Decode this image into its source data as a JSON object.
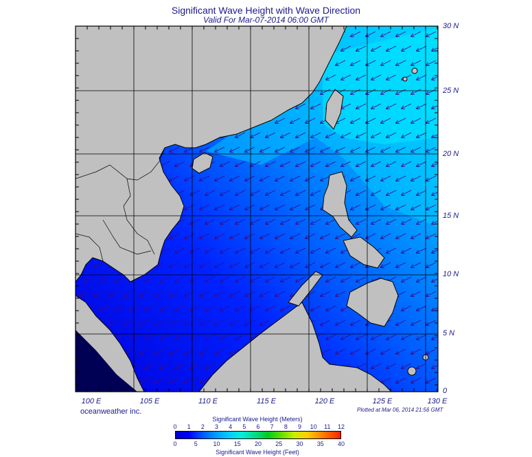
{
  "header": {
    "title": "Significant Wave Height with Wave Direction",
    "valid": "Valid For Mar-07-2014 06:00 GMT"
  },
  "axes": {
    "lat_labels": [
      "30 N",
      "25 N",
      "20 N",
      "15 N",
      "10 N",
      "5 N",
      "0"
    ],
    "lon_labels": [
      "100 E",
      "105 E",
      "110 E",
      "115 E",
      "120 E",
      "125 E",
      "130 E"
    ]
  },
  "footer": {
    "credit": "oceanweather inc.",
    "plotted": "Plotted at Mar 06, 2014 21:56 GMT"
  },
  "colorbar": {
    "meters_title": "Significant Wave Height (Meters)",
    "feet_title": "Significant Wave Height (Feet)",
    "meters_ticks": [
      "0",
      "1",
      "2",
      "3",
      "4",
      "5",
      "6",
      "7",
      "8",
      "9",
      "10",
      "11",
      "12"
    ],
    "feet_ticks": [
      "0",
      "5",
      "10",
      "15",
      "20",
      "25",
      "30",
      "35",
      "40"
    ]
  },
  "colors": {
    "land": "#c0c0c0",
    "wave_low": "#0000ff",
    "wave_mid": "#0099ff",
    "wave_high": "#00eeff",
    "arrow": "#3a0a8a"
  },
  "map_bounds": {
    "lon_min": 100,
    "lon_max": 130,
    "lat_min": 0,
    "lat_max": 30
  }
}
